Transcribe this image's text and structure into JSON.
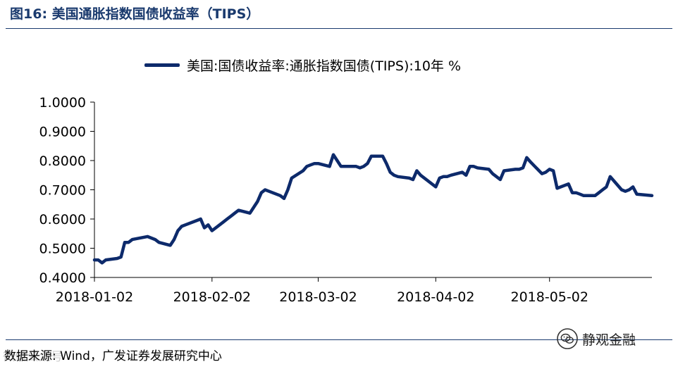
{
  "figure": {
    "title": "图16:  美国通胀指数国债收益率（TIPS）",
    "source": "数据来源: Wind，广发证券发展研究中心",
    "watermark_left": "微信公众号",
    "watermark": {
      "icon": "wechat-icon",
      "text": "静观金融"
    }
  },
  "colors": {
    "title": "#1a3a6e",
    "series": "#0d2a6b",
    "axis": "#000000"
  },
  "chart_data": {
    "type": "line",
    "title": "",
    "xlabel": "",
    "ylabel": "",
    "ylim": [
      0.4,
      1.0
    ],
    "yticks": [
      "0.4000",
      "0.5000",
      "0.6000",
      "0.7000",
      "0.8000",
      "0.9000",
      "1.0000"
    ],
    "xlim": [
      "2018-01-02",
      "2018-05-29"
    ],
    "xticks": [
      "2018-01-02",
      "2018-02-02",
      "2018-03-02",
      "2018-04-02",
      "2018-05-02"
    ],
    "grid": false,
    "legend_position": "top",
    "series": [
      {
        "name": "美国:国债收益率:通胀指数国债(TIPS):10年 %",
        "points": [
          [
            "2018-01-02",
            0.46
          ],
          [
            "2018-01-03",
            0.46
          ],
          [
            "2018-01-04",
            0.45
          ],
          [
            "2018-01-05",
            0.46
          ],
          [
            "2018-01-08",
            0.465
          ],
          [
            "2018-01-09",
            0.47
          ],
          [
            "2018-01-10",
            0.52
          ],
          [
            "2018-01-11",
            0.52
          ],
          [
            "2018-01-12",
            0.53
          ],
          [
            "2018-01-16",
            0.54
          ],
          [
            "2018-01-17",
            0.535
          ],
          [
            "2018-01-18",
            0.53
          ],
          [
            "2018-01-19",
            0.52
          ],
          [
            "2018-01-22",
            0.51
          ],
          [
            "2018-01-23",
            0.53
          ],
          [
            "2018-01-24",
            0.56
          ],
          [
            "2018-01-25",
            0.575
          ],
          [
            "2018-01-26",
            0.58
          ],
          [
            "2018-01-29",
            0.595
          ],
          [
            "2018-01-30",
            0.6
          ],
          [
            "2018-01-31",
            0.57
          ],
          [
            "2018-02-01",
            0.58
          ],
          [
            "2018-02-02",
            0.56
          ],
          [
            "2018-02-05",
            0.59
          ],
          [
            "2018-02-06",
            0.6
          ],
          [
            "2018-02-07",
            0.61
          ],
          [
            "2018-02-08",
            0.62
          ],
          [
            "2018-02-09",
            0.63
          ],
          [
            "2018-02-12",
            0.62
          ],
          [
            "2018-02-13",
            0.64
          ],
          [
            "2018-02-14",
            0.66
          ],
          [
            "2018-02-15",
            0.69
          ],
          [
            "2018-02-16",
            0.7
          ],
          [
            "2018-02-20",
            0.68
          ],
          [
            "2018-02-21",
            0.67
          ],
          [
            "2018-02-22",
            0.7
          ],
          [
            "2018-02-23",
            0.74
          ],
          [
            "2018-02-26",
            0.765
          ],
          [
            "2018-02-27",
            0.78
          ],
          [
            "2018-02-28",
            0.785
          ],
          [
            "2018-03-01",
            0.79
          ],
          [
            "2018-03-02",
            0.79
          ],
          [
            "2018-03-05",
            0.78
          ],
          [
            "2018-03-06",
            0.82
          ],
          [
            "2018-03-07",
            0.8
          ],
          [
            "2018-03-08",
            0.78
          ],
          [
            "2018-03-09",
            0.78
          ],
          [
            "2018-03-12",
            0.78
          ],
          [
            "2018-03-13",
            0.775
          ],
          [
            "2018-03-14",
            0.78
          ],
          [
            "2018-03-15",
            0.79
          ],
          [
            "2018-03-16",
            0.815
          ],
          [
            "2018-03-19",
            0.815
          ],
          [
            "2018-03-20",
            0.79
          ],
          [
            "2018-03-21",
            0.76
          ],
          [
            "2018-03-22",
            0.75
          ],
          [
            "2018-03-23",
            0.745
          ],
          [
            "2018-03-26",
            0.74
          ],
          [
            "2018-03-27",
            0.735
          ],
          [
            "2018-03-28",
            0.765
          ],
          [
            "2018-03-29",
            0.75
          ],
          [
            "2018-04-02",
            0.71
          ],
          [
            "2018-04-03",
            0.74
          ],
          [
            "2018-04-04",
            0.745
          ],
          [
            "2018-04-05",
            0.745
          ],
          [
            "2018-04-06",
            0.75
          ],
          [
            "2018-04-09",
            0.76
          ],
          [
            "2018-04-10",
            0.75
          ],
          [
            "2018-04-11",
            0.78
          ],
          [
            "2018-04-12",
            0.78
          ],
          [
            "2018-04-13",
            0.775
          ],
          [
            "2018-04-16",
            0.77
          ],
          [
            "2018-04-17",
            0.755
          ],
          [
            "2018-04-18",
            0.745
          ],
          [
            "2018-04-19",
            0.735
          ],
          [
            "2018-04-20",
            0.765
          ],
          [
            "2018-04-23",
            0.77
          ],
          [
            "2018-04-24",
            0.77
          ],
          [
            "2018-04-25",
            0.775
          ],
          [
            "2018-04-26",
            0.81
          ],
          [
            "2018-04-27",
            0.795
          ],
          [
            "2018-04-30",
            0.755
          ],
          [
            "2018-05-01",
            0.76
          ],
          [
            "2018-05-02",
            0.77
          ],
          [
            "2018-05-03",
            0.765
          ],
          [
            "2018-05-04",
            0.705
          ],
          [
            "2018-05-07",
            0.72
          ],
          [
            "2018-05-08",
            0.69
          ],
          [
            "2018-05-09",
            0.69
          ],
          [
            "2018-05-10",
            0.685
          ],
          [
            "2018-05-11",
            0.68
          ],
          [
            "2018-05-14",
            0.68
          ],
          [
            "2018-05-15",
            0.69
          ],
          [
            "2018-05-16",
            0.7
          ],
          [
            "2018-05-17",
            0.71
          ],
          [
            "2018-05-18",
            0.745
          ],
          [
            "2018-05-21",
            0.7
          ],
          [
            "2018-05-22",
            0.695
          ],
          [
            "2018-05-23",
            0.7
          ],
          [
            "2018-05-24",
            0.71
          ],
          [
            "2018-05-25",
            0.685
          ],
          [
            "2018-05-29",
            0.68
          ]
        ]
      }
    ]
  }
}
